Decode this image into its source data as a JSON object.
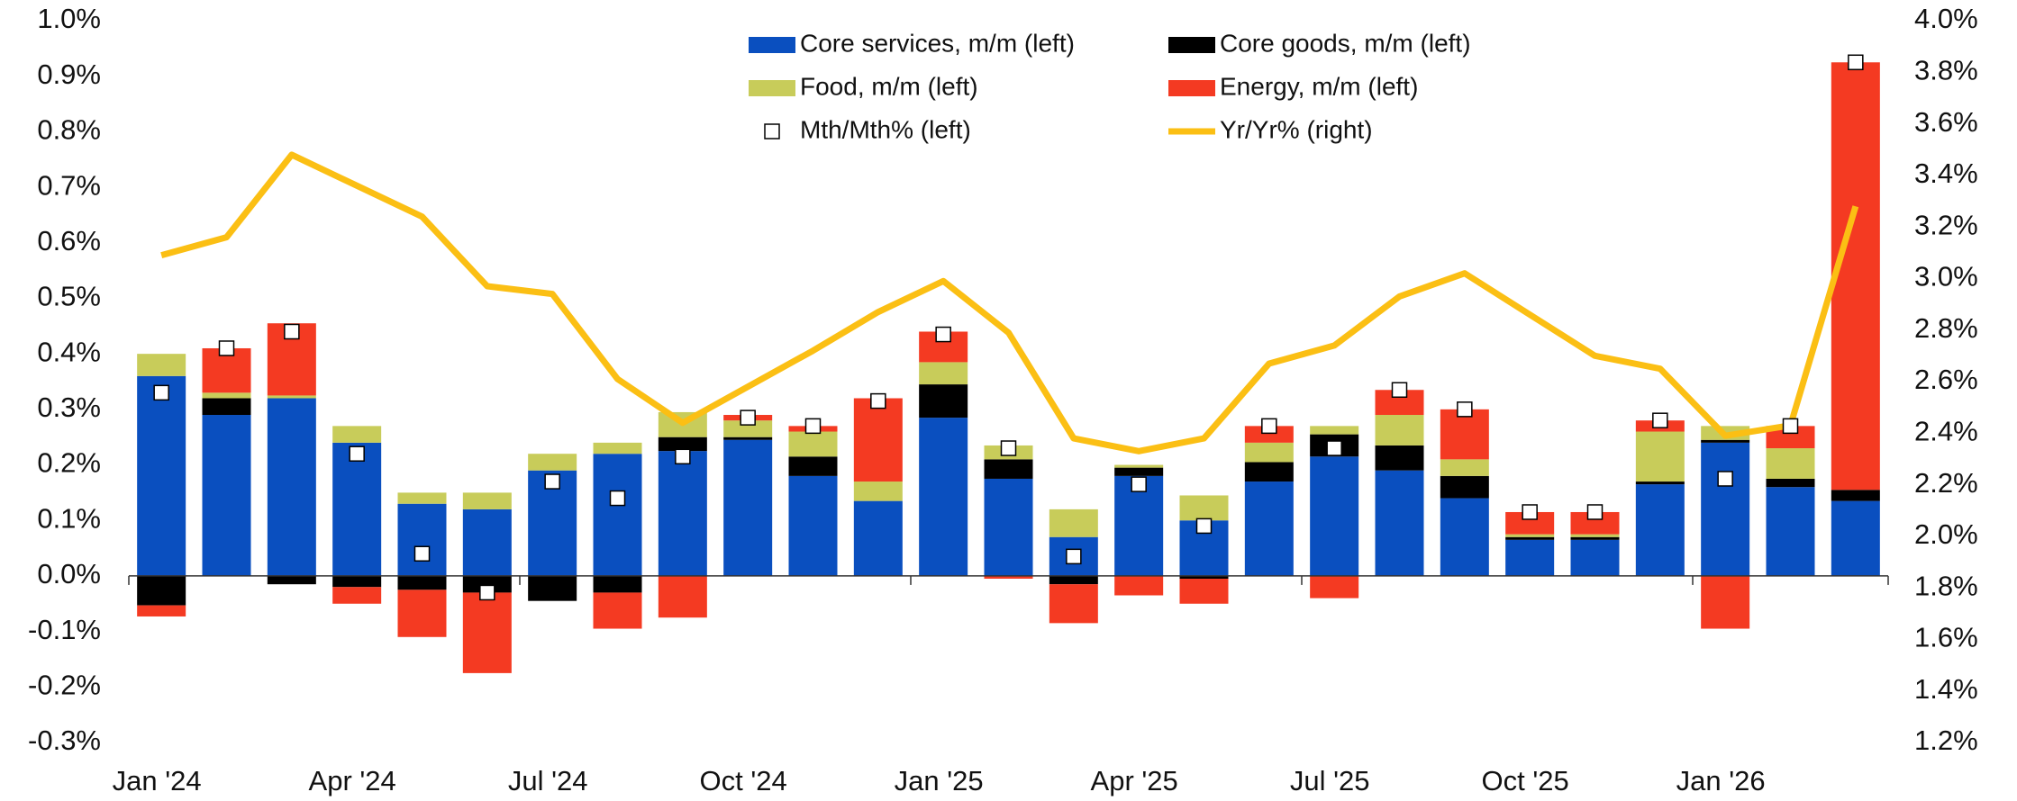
{
  "chart_data": {
    "type": "bar",
    "categories": [
      "Jan '24",
      null,
      null,
      "Apr '24",
      null,
      null,
      "Jul '24",
      null,
      null,
      "Oct '24",
      null,
      null,
      "Jan '25",
      null,
      null,
      "Apr '25",
      null,
      null,
      "Jul '25",
      null,
      null,
      "Oct '25",
      null,
      null,
      "Jan '26",
      null,
      null
    ],
    "series": [
      {
        "name": "Core services, m/m (left)",
        "type": "bar",
        "color": "#0a4fbf",
        "values": [
          0.36,
          0.29,
          0.32,
          0.24,
          0.13,
          0.12,
          0.19,
          0.22,
          0.225,
          0.245,
          0.18,
          0.135,
          0.285,
          0.175,
          0.07,
          0.18,
          0.1,
          0.17,
          0.215,
          0.19,
          0.14,
          0.065,
          0.065,
          0.165,
          0.24,
          0.16,
          0.135
        ]
      },
      {
        "name": "Core goods, m/m (left)",
        "type": "bar",
        "color": "#000000",
        "values": [
          -0.053,
          0.03,
          -0.015,
          -0.02,
          -0.025,
          -0.03,
          -0.045,
          -0.03,
          0.025,
          0.005,
          0.035,
          0,
          0.06,
          0.035,
          -0.015,
          0.015,
          -0.005,
          0.035,
          0.04,
          0.045,
          0.04,
          0.005,
          0.005,
          0.005,
          0.005,
          0.015,
          0.02
        ]
      },
      {
        "name": "Food, m/m (left)",
        "type": "bar",
        "color": "#c8cc5a",
        "values": [
          0.04,
          0.01,
          0.005,
          0.03,
          0.02,
          0.03,
          0.03,
          0.02,
          0.045,
          0.03,
          0.045,
          0.035,
          0.04,
          0.025,
          0.05,
          0.005,
          0.045,
          0.035,
          0.015,
          0.055,
          0.03,
          0.005,
          0.005,
          0.09,
          0.025,
          0.055,
          0
        ]
      },
      {
        "name": "Energy, m/m (left)",
        "type": "bar",
        "color": "#f43a22",
        "values": [
          -0.02,
          0.08,
          0.13,
          -0.03,
          -0.085,
          -0.145,
          0,
          -0.065,
          -0.075,
          0.01,
          0.01,
          0.15,
          0.055,
          -0.005,
          -0.07,
          -0.035,
          -0.045,
          0.03,
          -0.04,
          0.045,
          0.09,
          0.04,
          0.04,
          0.02,
          -0.095,
          0.04,
          0.77
        ]
      },
      {
        "name": "Mth/Mth% (left)",
        "type": "marker",
        "color": "#ffffff",
        "values": [
          0.33,
          0.41,
          0.44,
          0.22,
          0.04,
          -0.03,
          0.17,
          0.14,
          0.215,
          0.285,
          0.27,
          0.315,
          0.435,
          0.23,
          0.035,
          0.165,
          0.09,
          0.27,
          0.23,
          0.335,
          0.3,
          0.115,
          0.115,
          0.28,
          0.175,
          0.27,
          0.925
        ]
      },
      {
        "name": "Yr/Yr% (right)",
        "type": "line",
        "axis": "y2",
        "color": "#fbbf14",
        "values": [
          3.09,
          3.16,
          3.48,
          3.36,
          3.24,
          2.97,
          2.94,
          2.61,
          2.44,
          2.58,
          2.72,
          2.87,
          2.99,
          2.79,
          2.38,
          2.33,
          2.38,
          2.67,
          2.74,
          2.93,
          3.02,
          2.86,
          2.7,
          2.65,
          2.39,
          2.43,
          3.28
        ]
      }
    ],
    "ylim": [
      -0.3,
      1.0
    ],
    "yticks": [
      {
        "value": -0.3,
        "label": "-0.3%"
      },
      {
        "value": -0.2,
        "label": "-0.2%"
      },
      {
        "value": -0.1,
        "label": "-0.1%"
      },
      {
        "value": 0,
        "label": "0.0%"
      },
      {
        "value": 0.1,
        "label": "0.1%"
      },
      {
        "value": 0.2,
        "label": "0.2%"
      },
      {
        "value": 0.3,
        "label": "0.3%"
      },
      {
        "value": 0.4,
        "label": "0.4%"
      },
      {
        "value": 0.5,
        "label": "0.5%"
      },
      {
        "value": 0.6,
        "label": "0.6%"
      },
      {
        "value": 0.7,
        "label": "0.7%"
      },
      {
        "value": 0.8,
        "label": "0.8%"
      },
      {
        "value": 0.9,
        "label": "0.9%"
      },
      {
        "value": 1.0,
        "label": "1.0%"
      }
    ],
    "y2lim": [
      1.2,
      4.0
    ],
    "y2ticks": [
      {
        "value": 1.2,
        "label": "1.2%"
      },
      {
        "value": 1.4,
        "label": "1.4%"
      },
      {
        "value": 1.6,
        "label": "1.6%"
      },
      {
        "value": 1.8,
        "label": "1.8%"
      },
      {
        "value": 2.0,
        "label": "2.0%"
      },
      {
        "value": 2.2,
        "label": "2.2%"
      },
      {
        "value": 2.4,
        "label": "2.4%"
      },
      {
        "value": 2.6,
        "label": "2.6%"
      },
      {
        "value": 2.8,
        "label": "2.8%"
      },
      {
        "value": 3.0,
        "label": "3.0%"
      },
      {
        "value": 3.2,
        "label": "3.2%"
      },
      {
        "value": 3.4,
        "label": "3.4%"
      },
      {
        "value": 3.6,
        "label": "3.6%"
      },
      {
        "value": 3.8,
        "label": "3.8%"
      },
      {
        "value": 4.0,
        "label": "4.0%"
      }
    ],
    "stacked": true,
    "grid": false,
    "legend": "top"
  }
}
